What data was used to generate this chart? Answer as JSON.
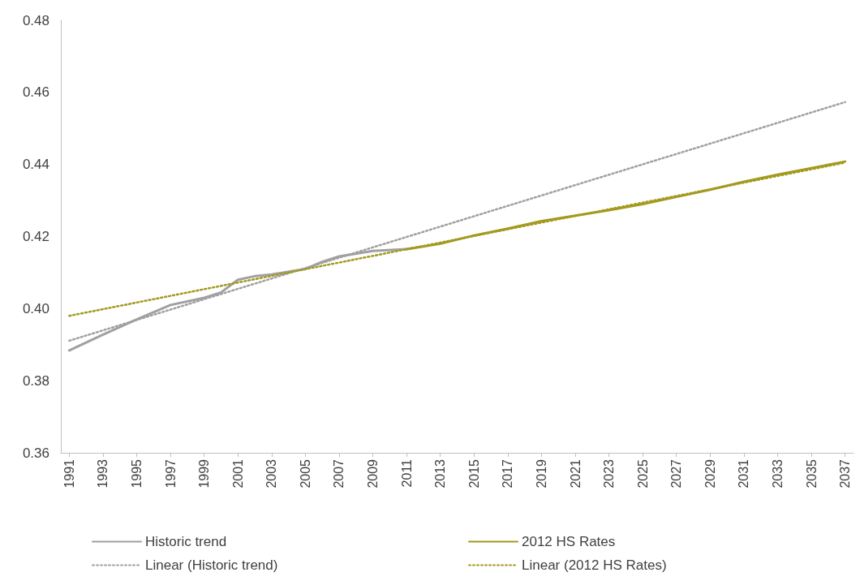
{
  "chart_data": {
    "type": "line",
    "xlim": [
      1990.5,
      2037.5
    ],
    "xticks": [
      1991,
      1993,
      1995,
      1997,
      1999,
      2001,
      2003,
      2005,
      2007,
      2009,
      2011,
      2013,
      2015,
      2017,
      2019,
      2021,
      2023,
      2025,
      2027,
      2029,
      2031,
      2033,
      2035,
      2037
    ],
    "ylim": [
      0.36,
      0.48
    ],
    "yticks": [
      0.36,
      0.38,
      {
        "value": 0.4,
        "label": "0.40"
      },
      0.42,
      0.44,
      0.46,
      0.48
    ],
    "grid": false,
    "legend": "bottom",
    "marker": "none",
    "series": [
      {
        "name": "Historic trend",
        "color": "#a0a0a0",
        "line_style": "solid",
        "x": [
          1991,
          1993,
          1995,
          1997,
          1999,
          2000,
          2001,
          2002,
          2003,
          2005,
          2006,
          2007,
          2009,
          2011
        ],
        "values": [
          0.3884,
          0.3928,
          0.397,
          0.401,
          0.403,
          0.4045,
          0.408,
          0.409,
          0.4095,
          0.411,
          0.413,
          0.4145,
          0.416,
          0.4165
        ]
      },
      {
        "name": "2012 HS Rates",
        "color": "#a39a1f",
        "line_style": "solid",
        "x": [
          2011,
          2013,
          2015,
          2017,
          2019,
          2021,
          2023,
          2025,
          2027,
          2029,
          2031,
          2033,
          2035,
          2037
        ],
        "values": [
          0.4165,
          0.418,
          0.4203,
          0.4222,
          0.4243,
          0.4258,
          0.4273,
          0.429,
          0.431,
          0.433,
          0.4352,
          0.4372,
          0.439,
          0.4408
        ]
      },
      {
        "name": "Linear (Historic trend)",
        "color": "#a0a0a0",
        "line_style": "dotted",
        "x": [
          1991,
          2037
        ],
        "values": [
          0.3911,
          0.4573
        ]
      },
      {
        "name": "Linear (2012 HS Rates)",
        "color": "#a39a1f",
        "line_style": "dotted",
        "x": [
          1991,
          2037
        ],
        "values": [
          0.398,
          0.4405
        ]
      }
    ]
  }
}
